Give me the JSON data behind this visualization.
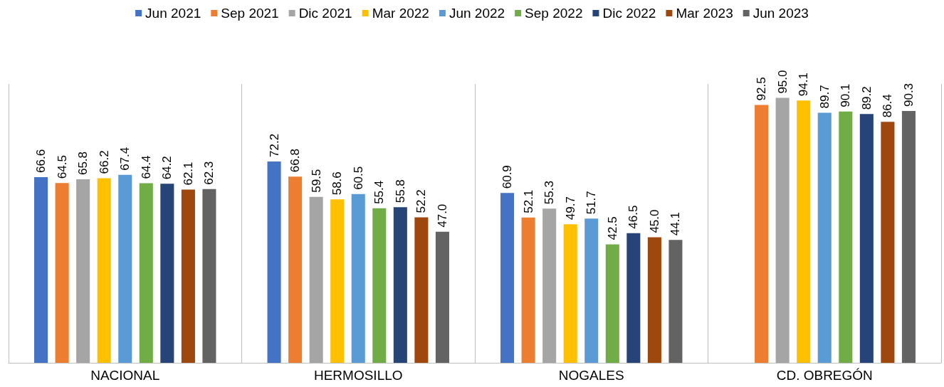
{
  "chart_data": {
    "type": "bar",
    "categories": [
      "NACIONAL",
      "HERMOSILLO",
      "NOGALES",
      "CD. OBREGÓN"
    ],
    "series": [
      {
        "name": "Jun 2021",
        "color": "#4472c4",
        "values": [
          66.6,
          72.2,
          60.9,
          null
        ],
        "value_labels": [
          "66.6",
          "72.2",
          "60.9",
          null
        ]
      },
      {
        "name": "Sep 2021",
        "color": "#ed7d31",
        "values": [
          64.5,
          66.8,
          52.1,
          92.5
        ],
        "value_labels": [
          "64.5",
          "66.8",
          "52.1",
          "92.5"
        ]
      },
      {
        "name": "Dic 2021",
        "color": "#a5a5a5",
        "values": [
          65.8,
          59.5,
          55.3,
          95.0
        ],
        "value_labels": [
          "65.8",
          "59.5",
          "55.3",
          "95.0"
        ]
      },
      {
        "name": "Mar 2022",
        "color": "#ffc000",
        "values": [
          66.2,
          58.6,
          49.7,
          94.1
        ],
        "value_labels": [
          "66.2",
          "58.6",
          "49.7",
          "94.1"
        ]
      },
      {
        "name": "Jun 2022",
        "color": "#5b9bd5",
        "values": [
          67.4,
          60.5,
          51.7,
          89.7
        ],
        "value_labels": [
          "67.4",
          "60.5",
          "51.7",
          "89.7"
        ]
      },
      {
        "name": "Sep 2022",
        "color": "#70ad47",
        "values": [
          64.4,
          55.4,
          42.5,
          90.1
        ],
        "value_labels": [
          "64.4",
          "55.4",
          "42.5",
          "90.1"
        ]
      },
      {
        "name": "Dic 2022",
        "color": "#264478",
        "values": [
          64.2,
          55.8,
          46.5,
          89.2
        ],
        "value_labels": [
          "64.2",
          "55.8",
          "46.5",
          "89.2"
        ]
      },
      {
        "name": "Mar 2023",
        "color": "#9e480e",
        "values": [
          62.1,
          52.2,
          45.0,
          86.4
        ],
        "value_labels": [
          "62.1",
          "52.2",
          "45.0",
          "86.4"
        ]
      },
      {
        "name": "Jun 2023",
        "color": "#636363",
        "values": [
          62.3,
          47.0,
          44.1,
          90.3
        ],
        "value_labels": [
          "62.3",
          "47.0",
          "44.1",
          "90.3"
        ]
      }
    ],
    "grid": "x",
    "legend": "top",
    "tick_labels": "x"
  }
}
